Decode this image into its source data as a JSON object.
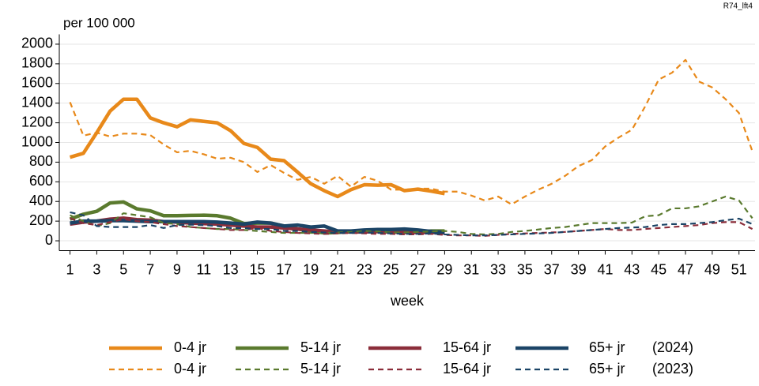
{
  "chart_data": {
    "type": "line",
    "corner_note": "R74_lft4",
    "ylabel": "per 100 000",
    "xlabel": "week",
    "x": [
      1,
      2,
      3,
      4,
      5,
      6,
      7,
      8,
      9,
      10,
      11,
      12,
      13,
      14,
      15,
      16,
      17,
      18,
      19,
      20,
      21,
      22,
      23,
      24,
      25,
      26,
      27,
      28,
      29,
      30,
      31,
      32,
      33,
      34,
      35,
      36,
      37,
      38,
      39,
      40,
      41,
      42,
      43,
      44,
      45,
      46,
      47,
      48,
      49,
      50,
      51,
      52
    ],
    "xlim": [
      0.2,
      52.2
    ],
    "xticks": [
      1,
      3,
      5,
      7,
      9,
      11,
      13,
      15,
      17,
      19,
      21,
      23,
      25,
      27,
      29,
      31,
      33,
      35,
      37,
      39,
      41,
      43,
      45,
      47,
      49,
      51
    ],
    "ylim": [
      -100,
      2100
    ],
    "yticks": [
      0,
      200,
      400,
      600,
      800,
      1000,
      1200,
      1400,
      1600,
      1800,
      2000
    ],
    "grid": true,
    "legend_years": [
      "(2024)",
      "(2023)"
    ],
    "series": [
      {
        "name": "0-4 jr",
        "color": "#e8891a",
        "style": "solid",
        "values": [
          850,
          890,
          1100,
          1320,
          1440,
          1440,
          1250,
          1200,
          1160,
          1230,
          1215,
          1200,
          1120,
          990,
          950,
          830,
          815,
          700,
          580,
          510,
          450,
          520,
          570,
          565,
          570,
          510,
          525,
          505,
          480,
          null,
          null,
          null,
          null,
          null,
          null,
          null,
          null,
          null,
          null,
          null,
          null,
          null,
          null,
          null,
          null,
          null,
          null,
          null,
          null,
          null,
          null,
          null
        ]
      },
      {
        "name": "5-14 jr",
        "color": "#5a7a2e",
        "style": "solid",
        "values": [
          220,
          270,
          300,
          385,
          395,
          325,
          305,
          255,
          255,
          258,
          260,
          255,
          230,
          175,
          180,
          180,
          150,
          120,
          100,
          80,
          85,
          95,
          105,
          110,
          100,
          95,
          90,
          100,
          100,
          null,
          null,
          null,
          null,
          null,
          null,
          null,
          null,
          null,
          null,
          null,
          null,
          null,
          null,
          null,
          null,
          null,
          null,
          null,
          null,
          null,
          null,
          null
        ]
      },
      {
        "name": "15-64 jr",
        "color": "#8b2d3a",
        "style": "solid",
        "values": [
          170,
          190,
          200,
          220,
          230,
          215,
          210,
          195,
          190,
          180,
          175,
          170,
          160,
          150,
          140,
          140,
          130,
          120,
          110,
          100,
          90,
          90,
          90,
          95,
          90,
          85,
          85,
          85,
          80,
          null,
          null,
          null,
          null,
          null,
          null,
          null,
          null,
          null,
          null,
          null,
          null,
          null,
          null,
          null,
          null,
          null,
          null,
          null,
          null,
          null,
          null,
          null
        ]
      },
      {
        "name": "65+ jr",
        "color": "#1b4466",
        "style": "solid",
        "values": [
          180,
          200,
          200,
          205,
          205,
          200,
          195,
          195,
          195,
          195,
          195,
          190,
          180,
          170,
          190,
          180,
          150,
          160,
          140,
          150,
          100,
          100,
          110,
          115,
          115,
          120,
          110,
          95,
          85,
          null,
          null,
          null,
          null,
          null,
          null,
          null,
          null,
          null,
          null,
          null,
          null,
          null,
          null,
          null,
          null,
          null,
          null,
          null,
          null,
          null,
          null,
          null
        ]
      },
      {
        "name": "0-4 jr",
        "color": "#e8891a",
        "style": "dashed",
        "values": [
          1410,
          1070,
          1100,
          1060,
          1090,
          1090,
          1075,
          980,
          900,
          915,
          880,
          835,
          845,
          800,
          700,
          770,
          690,
          620,
          650,
          580,
          660,
          550,
          650,
          610,
          520,
          520,
          530,
          530,
          500,
          500,
          460,
          410,
          450,
          370,
          450,
          520,
          580,
          660,
          760,
          820,
          960,
          1050,
          1130,
          1370,
          1640,
          1710,
          1840,
          1620,
          1560,
          1440,
          1300,
          910
        ]
      },
      {
        "name": "5-14 jr",
        "color": "#5a7a2e",
        "style": "dashed",
        "values": [
          260,
          200,
          150,
          180,
          280,
          260,
          240,
          180,
          170,
          140,
          130,
          120,
          120,
          110,
          100,
          90,
          80,
          80,
          80,
          80,
          85,
          90,
          100,
          95,
          85,
          85,
          90,
          95,
          100,
          90,
          70,
          65,
          70,
          90,
          100,
          115,
          130,
          140,
          160,
          180,
          180,
          180,
          185,
          250,
          260,
          330,
          330,
          350,
          400,
          450,
          410,
          230
        ]
      },
      {
        "name": "15-64 jr",
        "color": "#8b2d3a",
        "style": "dashed",
        "values": [
          230,
          180,
          160,
          190,
          220,
          200,
          190,
          170,
          150,
          140,
          130,
          120,
          110,
          110,
          130,
          100,
          90,
          80,
          75,
          70,
          75,
          80,
          75,
          70,
          70,
          65,
          65,
          70,
          60,
          55,
          55,
          50,
          60,
          70,
          75,
          80,
          85,
          90,
          100,
          110,
          120,
          110,
          110,
          120,
          130,
          140,
          150,
          160,
          180,
          190,
          190,
          120
        ]
      },
      {
        "name": "65+ jr",
        "color": "#1b4466",
        "style": "dashed",
        "values": [
          290,
          260,
          150,
          140,
          140,
          140,
          160,
          130,
          160,
          165,
          160,
          150,
          130,
          130,
          120,
          120,
          100,
          100,
          90,
          85,
          80,
          80,
          85,
          80,
          75,
          70,
          70,
          75,
          65,
          60,
          55,
          55,
          60,
          65,
          70,
          75,
          80,
          90,
          100,
          110,
          120,
          130,
          135,
          140,
          160,
          170,
          170,
          180,
          190,
          210,
          225,
          170
        ]
      }
    ]
  }
}
